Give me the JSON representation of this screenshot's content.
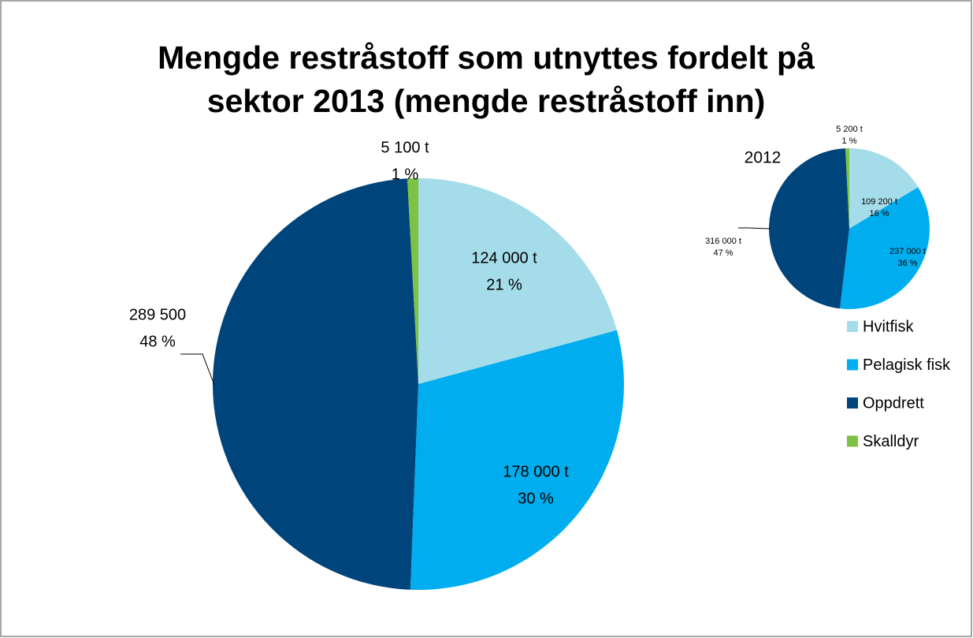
{
  "chart_data": [
    {
      "type": "pie",
      "title": [
        "Mengde restråstoff som utnyttes fordelt på",
        "sektor  2013 (mengde restråstoff inn)"
      ],
      "categories": [
        "Hvitfisk",
        "Pelagisk fisk",
        "Oppdrett",
        "Skalldyr"
      ],
      "colors": [
        "#a5dcea",
        "#00aeef",
        "#00447c",
        "#7dc242"
      ],
      "values": [
        124000,
        178000,
        289500,
        5100
      ],
      "value_labels": [
        "124 000 t",
        "178 000 t",
        "289  500",
        "5 100 t"
      ],
      "percents": [
        21,
        30,
        48,
        1
      ],
      "percent_labels": [
        "21 %",
        "30 %",
        "48 %",
        "1 %"
      ],
      "legend": "right"
    },
    {
      "type": "pie",
      "title": "2012",
      "values": [
        109200,
        237000,
        316000,
        5200
      ],
      "value_labels": [
        "109 200 t",
        "237 000 t",
        "316 000 t",
        "5 200 t"
      ],
      "percents": [
        16,
        36,
        47,
        1
      ],
      "percent_labels": [
        "16 %",
        "36 %",
        "47 %",
        "1 %"
      ]
    }
  ]
}
